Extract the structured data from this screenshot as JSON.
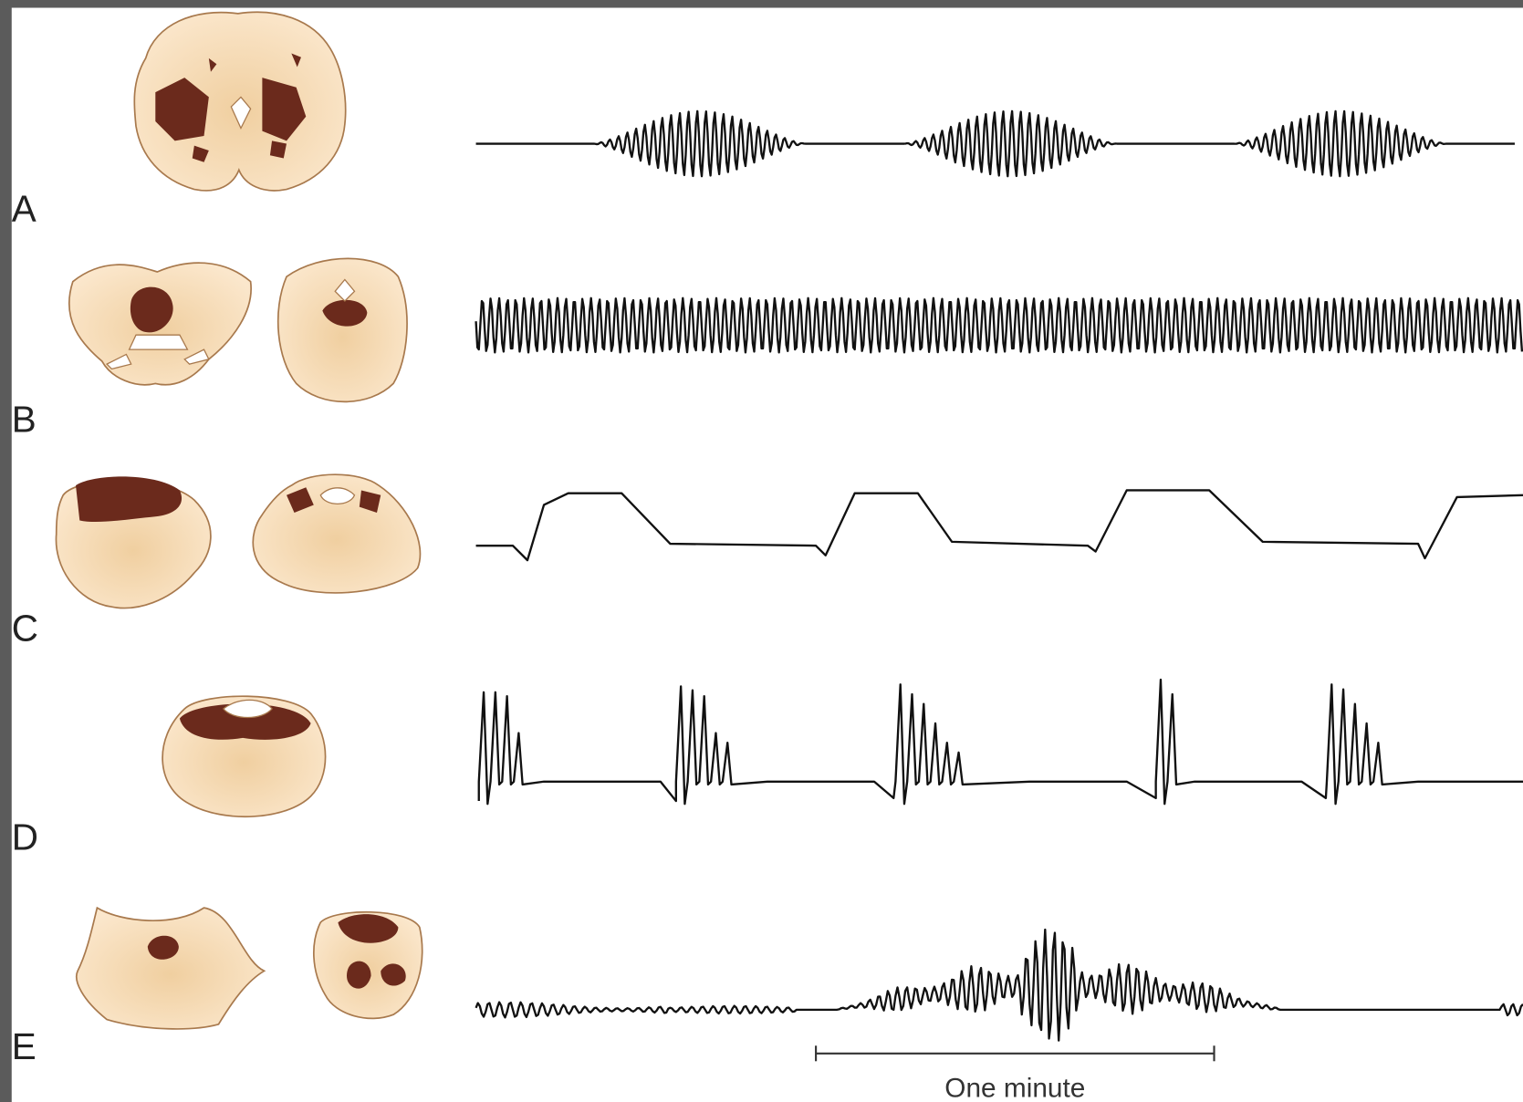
{
  "panels": [
    {
      "label": "A"
    },
    {
      "label": "B"
    },
    {
      "label": "C"
    },
    {
      "label": "D"
    },
    {
      "label": "E"
    }
  ],
  "scale_bar": {
    "label": "One minute"
  }
}
